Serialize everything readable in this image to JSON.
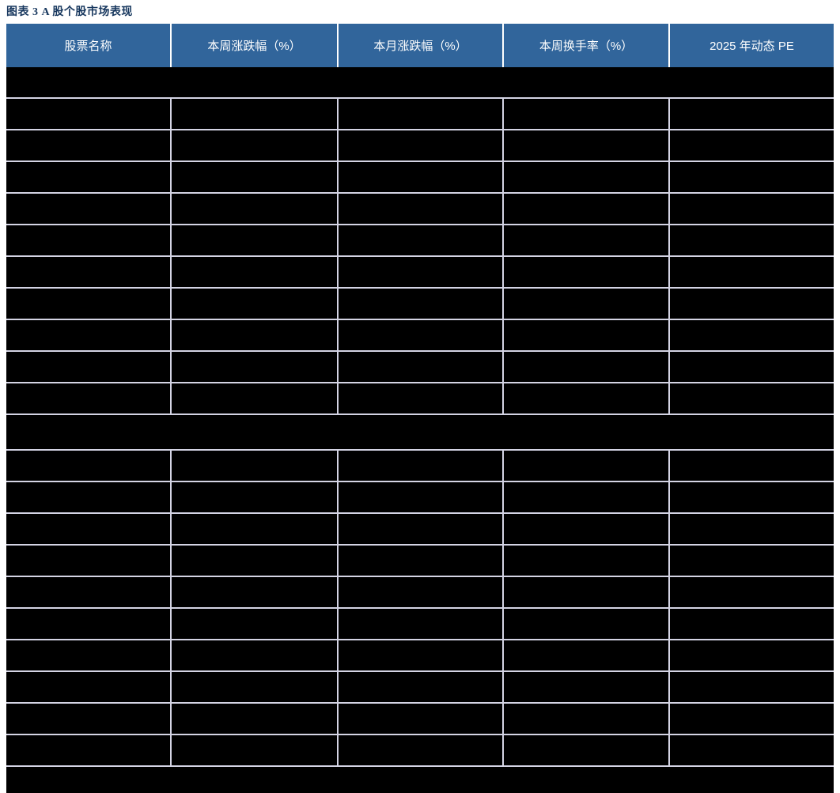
{
  "title": "图表 3 A 股个股市场表现",
  "table": {
    "headers": [
      {
        "label": "股票名称"
      },
      {
        "label": "本周涨跌幅（%）"
      },
      {
        "label": "本月涨跌幅（%）"
      },
      {
        "label": "本周换手率（%）"
      },
      {
        "label": "2025 年动态 PE"
      }
    ],
    "section1_row_count": 10,
    "section2_row_count": 10,
    "cell_text": ""
  },
  "colors": {
    "title_text": "#17375E",
    "header_bg": "#31659B",
    "header_text": "#FFFFFF",
    "body_bg": "#000000",
    "gridline": "#D4D4E4"
  }
}
